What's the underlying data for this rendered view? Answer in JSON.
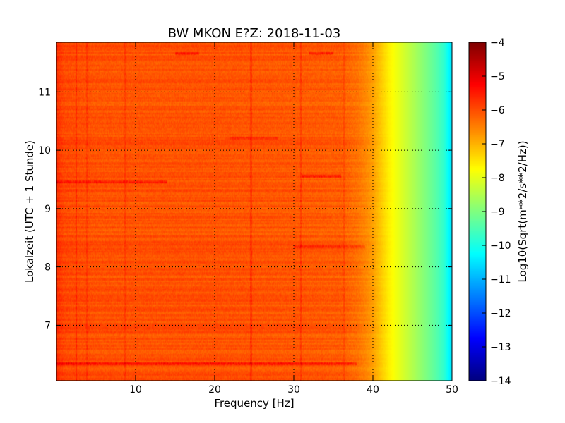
{
  "chart_data": {
    "type": "heatmap",
    "title": "BW MKON E?Z: 2018-11-03",
    "xlabel": "Frequency [Hz]",
    "ylabel": "Lokalzeit (UTC + 1 Stunde)",
    "colorbar_label": "Log10(Sqrt(m**2/s**2/Hz))",
    "colormap": "jet",
    "xlim": [
      0,
      50
    ],
    "ylim": [
      11.85,
      6.05
    ],
    "clim": [
      -14,
      -4
    ],
    "x_ticks": [
      10,
      20,
      30,
      40,
      50
    ],
    "x_tick_labels": [
      "10",
      "20",
      "30",
      "40",
      "50"
    ],
    "y_ticks": [
      7,
      8,
      9,
      10,
      11
    ],
    "y_tick_labels": [
      "7",
      "8",
      "9",
      "10",
      "11"
    ],
    "colorbar_ticks": [
      -4,
      -5,
      -6,
      -7,
      -8,
      -9,
      -10,
      -11,
      -12,
      -13,
      -14
    ],
    "colorbar_tick_labels": [
      "−4",
      "−5",
      "−6",
      "−7",
      "−8",
      "−9",
      "−10",
      "−11",
      "−12",
      "−13",
      "−14"
    ],
    "grid": true,
    "frequency_profile": {
      "x": [
        0,
        1,
        3,
        5,
        10,
        20,
        30,
        36,
        38,
        39,
        40,
        41,
        42,
        43,
        44,
        45,
        46,
        47,
        48,
        49,
        49.5,
        50
      ],
      "values": [
        -5.7,
        -5.95,
        -6.0,
        -6.05,
        -6.05,
        -6.05,
        -6.1,
        -6.15,
        -6.35,
        -6.55,
        -6.8,
        -7.2,
        -7.6,
        -7.9,
        -8.2,
        -8.5,
        -8.8,
        -9.1,
        -9.4,
        -9.8,
        -10.2,
        -10.6
      ]
    },
    "vertical_lines": [
      {
        "x": 2.5,
        "delta": 0.3
      },
      {
        "x": 3.9,
        "delta": 0.2
      },
      {
        "x": 8.7,
        "delta": 0.2
      },
      {
        "x": 24.6,
        "delta": 0.3
      },
      {
        "x": 30.9,
        "delta": 0.3
      },
      {
        "x": 36.4,
        "delta": 0.2
      }
    ],
    "horizontal_events": [
      {
        "t": 6.35,
        "x0": 0,
        "x1": 38,
        "delta": 0.55
      },
      {
        "t": 8.35,
        "x0": 30,
        "x1": 39,
        "delta": 0.45
      },
      {
        "t": 9.45,
        "x0": 0,
        "x1": 14,
        "delta": 0.55
      },
      {
        "t": 9.55,
        "x0": 31,
        "x1": 36,
        "delta": 0.5
      },
      {
        "t": 10.2,
        "x0": 22,
        "x1": 28,
        "delta": 0.3
      },
      {
        "t": 11.65,
        "x0": 15,
        "x1": 18,
        "delta": 0.5
      },
      {
        "t": 11.65,
        "x0": 32,
        "x1": 35,
        "delta": 0.5
      }
    ]
  }
}
